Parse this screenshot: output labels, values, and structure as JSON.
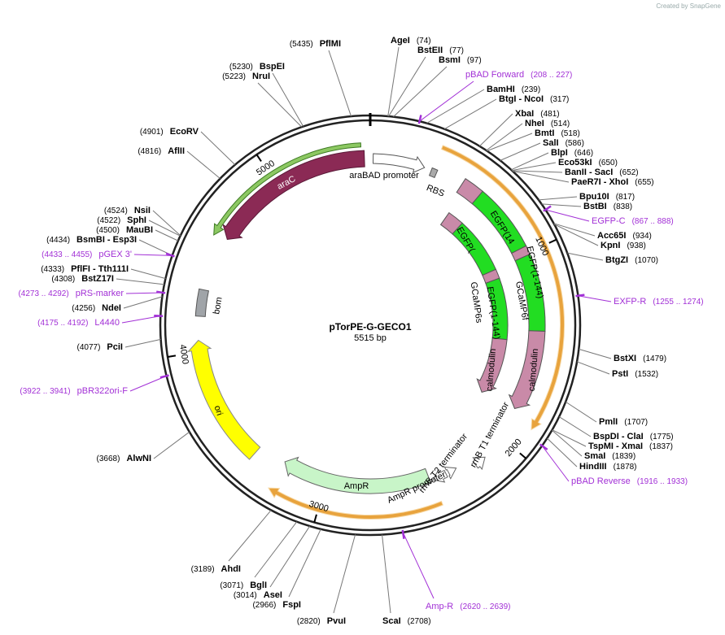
{
  "created_by": "Created by SnapGene",
  "map": {
    "name": "pTorPE-G-GECO1",
    "size": "5515 bp",
    "ticks": [
      1000,
      2000,
      3000,
      4000,
      5000
    ]
  },
  "enzymes": [
    {
      "name": "AgeI",
      "site": "(74)"
    },
    {
      "name": "BstEII",
      "site": "(77)"
    },
    {
      "name": "BsmI",
      "site": "(97)"
    },
    {
      "name": "BamHI",
      "site": "(239)"
    },
    {
      "name": "BtgI - NcoI",
      "site": "(317)"
    },
    {
      "name": "XbaI",
      "site": "(481)"
    },
    {
      "name": "NheI",
      "site": "(514)"
    },
    {
      "name": "BmtI",
      "site": "(518)"
    },
    {
      "name": "SalI",
      "site": "(586)"
    },
    {
      "name": "BlpI",
      "site": "(646)"
    },
    {
      "name": "Eco53kI",
      "site": "(650)"
    },
    {
      "name": "BanII - SacI",
      "site": "(652)"
    },
    {
      "name": "PaeR7I - XhoI",
      "site": "(655)"
    },
    {
      "name": "Bpu10I",
      "site": "(817)"
    },
    {
      "name": "BstBI",
      "site": "(838)"
    },
    {
      "name": "Acc65I",
      "site": "(934)"
    },
    {
      "name": "KpnI",
      "site": "(938)"
    },
    {
      "name": "BtgZI",
      "site": "(1070)"
    },
    {
      "name": "BstXI",
      "site": "(1479)"
    },
    {
      "name": "PstI",
      "site": "(1532)"
    },
    {
      "name": "PmlI",
      "site": "(1707)"
    },
    {
      "name": "BspDI - ClaI",
      "site": "(1775)"
    },
    {
      "name": "TspMI - XmaI",
      "site": "(1837)"
    },
    {
      "name": "SmaI",
      "site": "(1839)"
    },
    {
      "name": "HindIII",
      "site": "(1878)"
    },
    {
      "name": "ScaI",
      "site": "(2708)"
    },
    {
      "name": "PvuI",
      "site": "(2820)"
    },
    {
      "name": "FspI",
      "site": "(2966)"
    },
    {
      "name": "AseI",
      "site": "(3014)"
    },
    {
      "name": "BglI",
      "site": "(3071)"
    },
    {
      "name": "AhdI",
      "site": "(3189)"
    },
    {
      "name": "AlwNI",
      "site": "(3668)"
    },
    {
      "name": "PciI",
      "site": "(4077)"
    },
    {
      "name": "NdeI",
      "site": "(4256)"
    },
    {
      "name": "BstZ17I",
      "site": "(4308)"
    },
    {
      "name": "PflFI - Tth111I",
      "site": "(4333)"
    },
    {
      "name": "BsmBI - Esp3I",
      "site": "(4434)"
    },
    {
      "name": "MauBI",
      "site": "(4500)"
    },
    {
      "name": "SphI",
      "site": "(4522)"
    },
    {
      "name": "NsiI",
      "site": "(4524)"
    },
    {
      "name": "AflII",
      "site": "(4816)"
    },
    {
      "name": "EcoRV",
      "site": "(4901)"
    },
    {
      "name": "NruI",
      "site": "(5223)"
    },
    {
      "name": "BspEI",
      "site": "(5230)"
    },
    {
      "name": "PflMI",
      "site": "(5435)"
    }
  ],
  "primers": [
    {
      "name": "pBAD Forward",
      "site": "(208 .. 227)"
    },
    {
      "name": "EGFP-C",
      "site": "(867 .. 888)"
    },
    {
      "name": "EXFP-R",
      "site": "(1255 .. 1274)"
    },
    {
      "name": "pBAD Reverse",
      "site": "(1916 .. 1933)"
    },
    {
      "name": "Amp-R",
      "site": "(2620 .. 2639)"
    },
    {
      "name": "pBR322ori-F",
      "site": "(3922 .. 3941)"
    },
    {
      "name": "L4440",
      "site": "(4175 .. 4192)"
    },
    {
      "name": "pRS-marker",
      "site": "(4273 .. 4292)"
    },
    {
      "name": "pGEX 3'",
      "site": "(4433 .. 4455)"
    }
  ],
  "features": [
    "araC",
    "araBAD promoter",
    "RBS",
    "EGFP(14",
    "EGFP(1-144)",
    "calmodulin",
    "GCaMP6f",
    "EGFP(",
    "EGFP(1-144)",
    "calmodulin",
    "GCaMP6s",
    "rrnB T1 terminator",
    "rrnB T2 terminator",
    "AmpR promoter",
    "AmpR",
    "ori",
    "bom"
  ]
}
